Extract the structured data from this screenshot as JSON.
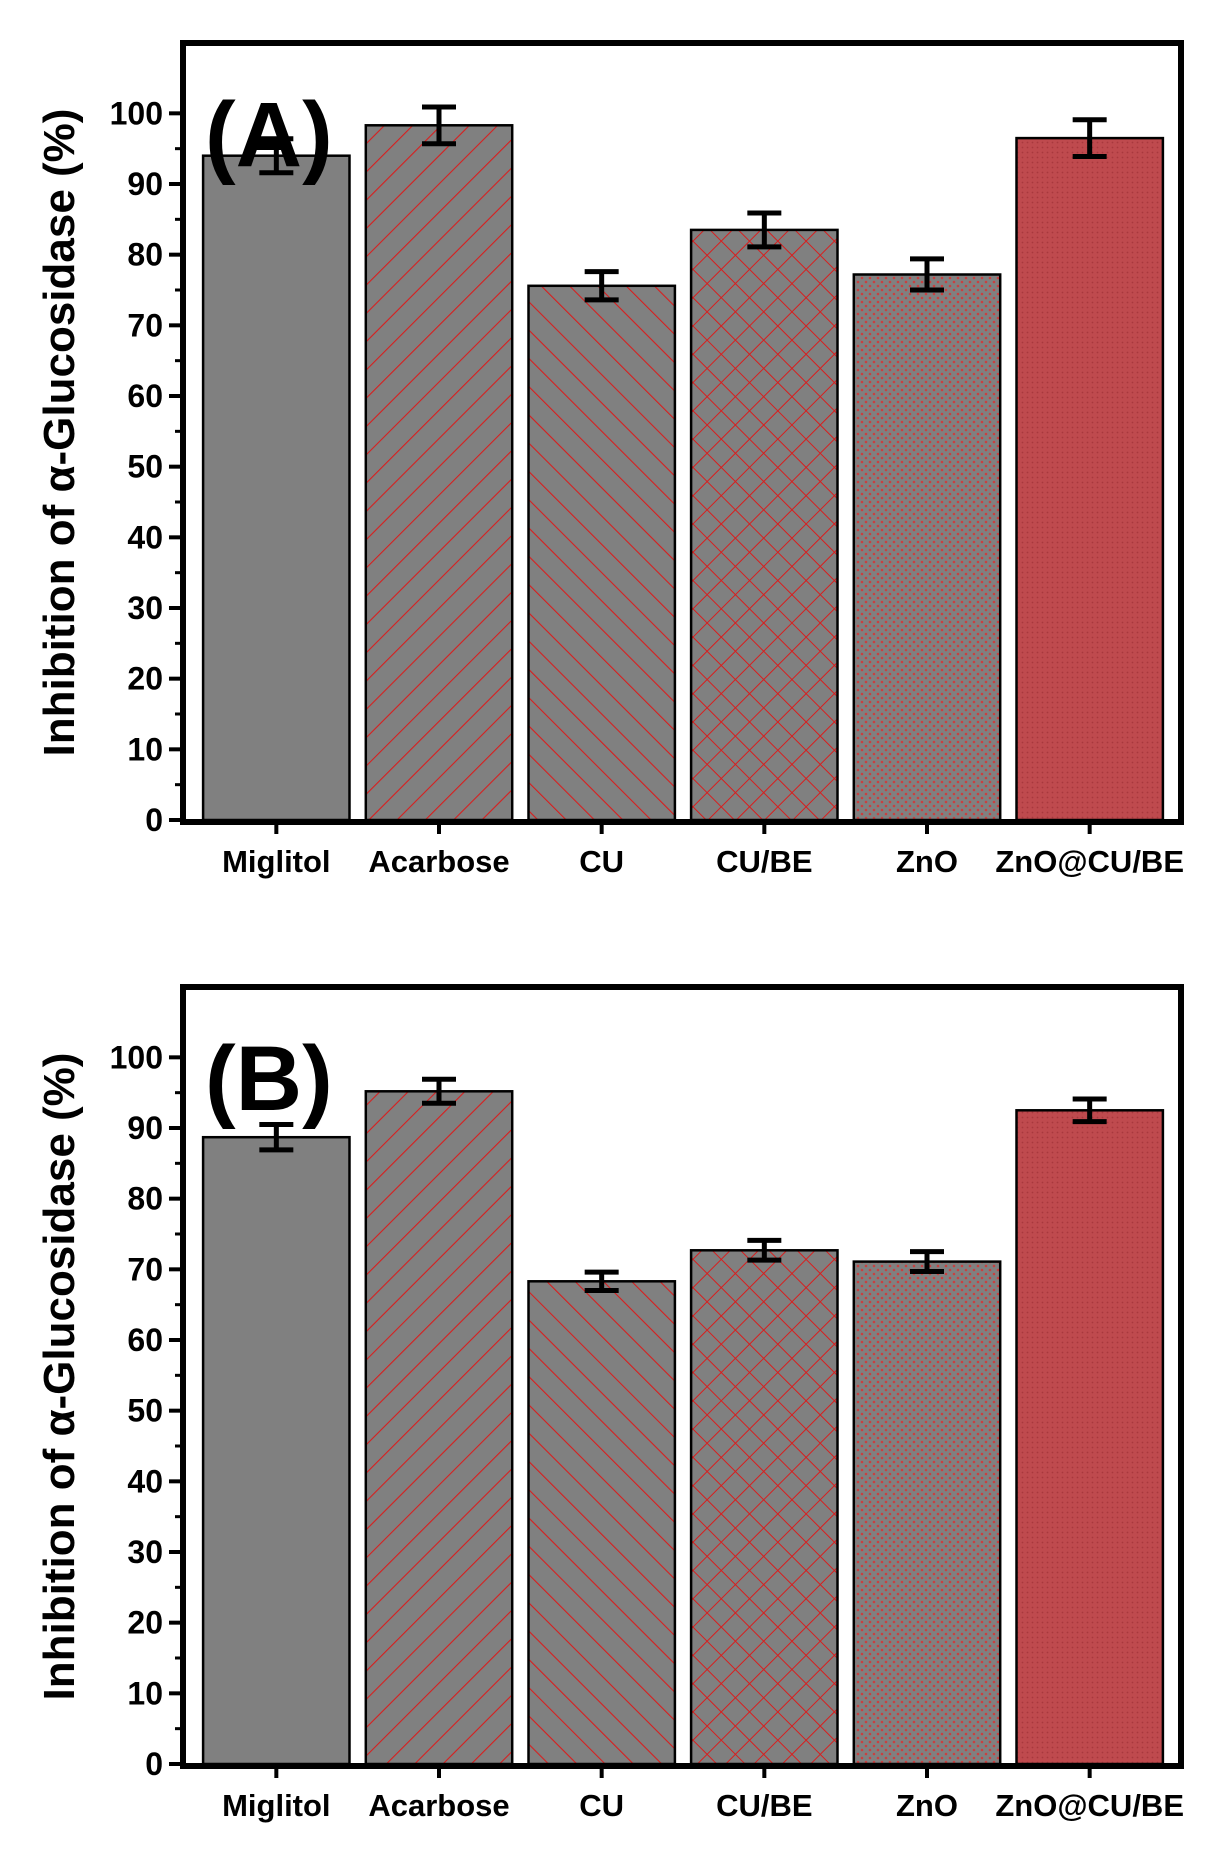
{
  "chart_data": [
    {
      "type": "bar",
      "panel_label": "(A)",
      "categories": [
        "Miglitol",
        "Acarbose",
        "CU",
        "CU/BE",
        "ZnO",
        "ZnO@CU/BE"
      ],
      "values": [
        94,
        98.3,
        75.6,
        83.5,
        77.2,
        96.5
      ],
      "errors": [
        2.4,
        2.6,
        2.0,
        2.4,
        2.2,
        2.6
      ],
      "ylabel": "Inhibition of α-Glucosidase  (%)",
      "xlabel": "",
      "ylim": [
        0,
        105
      ],
      "yticks": [
        "0",
        "10",
        "20",
        "30",
        "40",
        "50",
        "60",
        "70",
        "80",
        "90",
        "100"
      ],
      "patterns": [
        "solid-gray",
        "diag-right",
        "diag-left",
        "crosshatch",
        "dots",
        "dense-red"
      ]
    },
    {
      "type": "bar",
      "panel_label": "(B)",
      "categories": [
        "Miglitol",
        "Acarbose",
        "CU",
        "CU/BE",
        "ZnO",
        "ZnO@CU/BE"
      ],
      "values": [
        88.7,
        95.2,
        68.3,
        72.7,
        71.1,
        92.5
      ],
      "errors": [
        1.8,
        1.7,
        1.3,
        1.4,
        1.4,
        1.6
      ],
      "ylabel": "Inhibition of α-Glucosidase  (%)",
      "xlabel": "",
      "ylim": [
        0,
        105
      ],
      "yticks": [
        "0",
        "10",
        "20",
        "30",
        "40",
        "50",
        "60",
        "70",
        "80",
        "90",
        "100"
      ],
      "patterns": [
        "solid-gray",
        "diag-right",
        "diag-left",
        "crosshatch",
        "dots",
        "dense-red"
      ]
    }
  ],
  "colors": {
    "bar_gray": "#808080",
    "hatch_red": "#d81e1e",
    "dense_red": "#bf4a4e",
    "axis": "#000000"
  }
}
